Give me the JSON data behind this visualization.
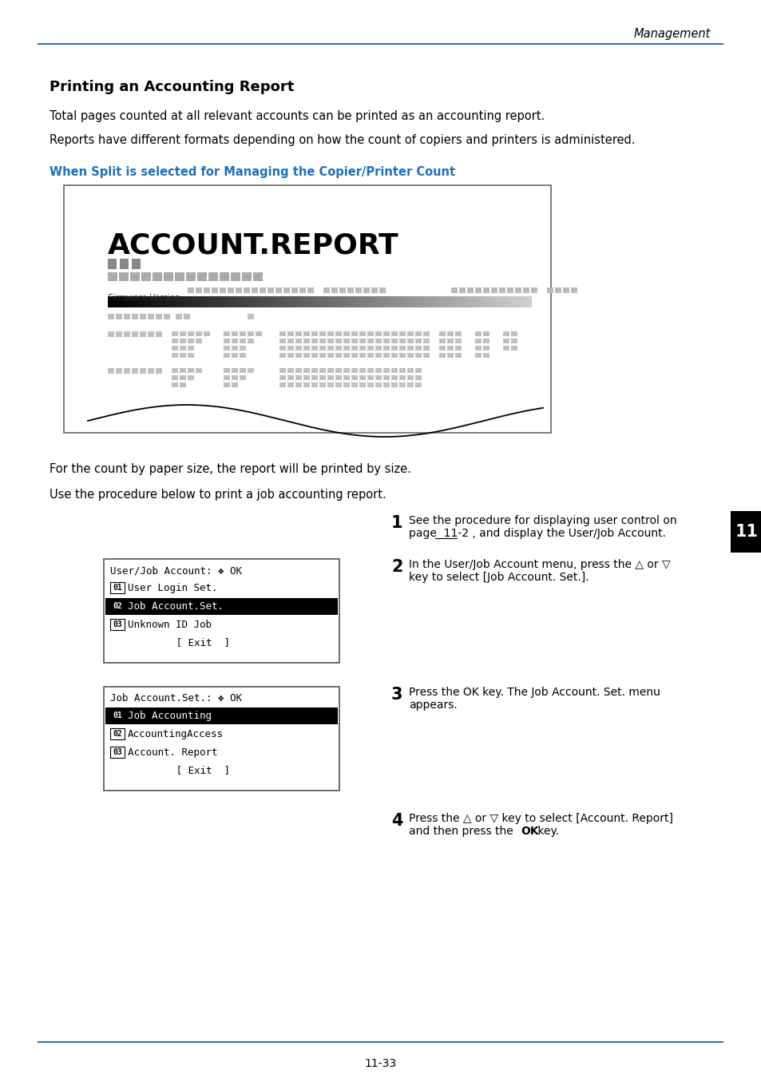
{
  "bg_color": "#ffffff",
  "header_line_color": "#2e75b6",
  "header_text": "Management",
  "title": "Printing an Accounting Report",
  "body_text_color": "#000000",
  "blue_heading": "When Split is selected for Managing the Copier/Printer Count",
  "blue_color": "#1e6fbb",
  "para1": "Total pages counted at all relevant accounts can be printed as an accounting report.",
  "para2": "Reports have different formats depending on how the count of copiers and printers is administered.",
  "para3": "For the count by paper size, the report will be printed by size.",
  "para4": "Use the procedure below to print a job accounting report.",
  "step1_num": "1",
  "step1_line1": "See the procedure for displaying user control on",
  "step1_line2": "page  11-2 , and display the User/Job Account.",
  "step2_num": "2",
  "step2_line1": "In the User/Job Account menu, press the △ or ▽",
  "step2_line2": "key to select [Job Account. Set.].",
  "step3_num": "3",
  "step3_line1": "Press the OK key. The Job Account. Set. menu",
  "step3_line2": "appears.",
  "step4_num": "4",
  "step4_line1": "Press the △ or ▽ key to select [Account. Report]",
  "step4_line2": "and then press the OK key.",
  "menu1_title": "User/Job Account: ❖ OK",
  "menu1_lines": [
    " 01  User Login Set.",
    " 02  Job Account.Set.",
    " 03  Unknown ID Job",
    "           [ Exit  ]"
  ],
  "menu1_highlight": 1,
  "menu2_title": "Job Account.Set.: ❖ OK",
  "menu2_lines": [
    " 01  Job Accounting",
    " 02  AccountingAccess",
    " 03  Account. Report",
    "           [ Exit  ]"
  ],
  "menu2_highlight": 0,
  "footer_line_color": "#2e75b6",
  "footer_text": "11-33",
  "tab_label": "11",
  "tab_color": "#000000",
  "tab_text_color": "#ffffff"
}
